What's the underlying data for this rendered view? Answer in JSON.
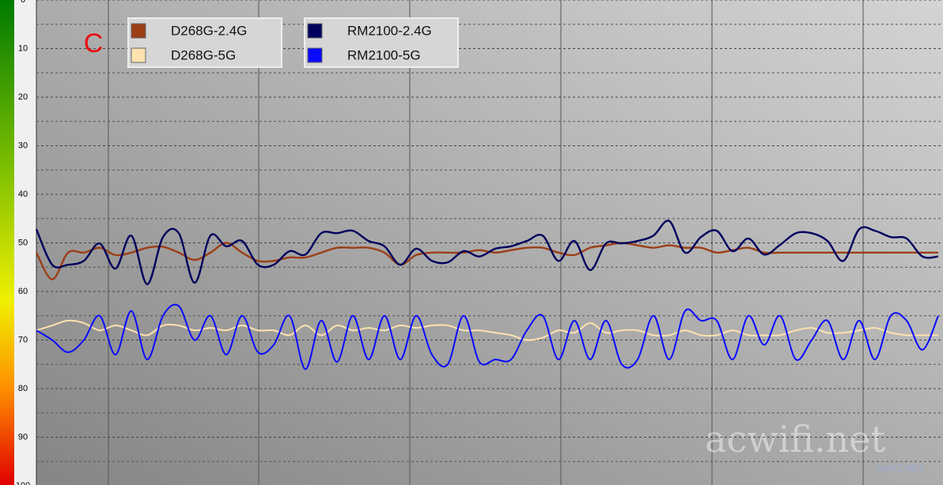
{
  "chart_data": {
    "type": "line",
    "annotation": "C",
    "watermark": "acwifi.net",
    "watermark_small": "SMYZ.NET",
    "categories": [
      null,
      null,
      null,
      null,
      null,
      null,
      null,
      null,
      null,
      null,
      null,
      null,
      null,
      null,
      null,
      null,
      null,
      null,
      null,
      null,
      null,
      null,
      null,
      null,
      null,
      null,
      null,
      null,
      null,
      null,
      null,
      null,
      null,
      null,
      null,
      null,
      null,
      null,
      null,
      null,
      null,
      null,
      null,
      null,
      null,
      null,
      null,
      null,
      null,
      null,
      null,
      null,
      null,
      null,
      null,
      null,
      null,
      null
    ],
    "ylim": [
      100,
      0
    ],
    "yticks": [
      0,
      10,
      20,
      30,
      40,
      50,
      60,
      70,
      80,
      90,
      100
    ],
    "grid": true,
    "legend": "top-left",
    "series": [
      {
        "name": "D268G-2.4G",
        "color": "#9c3f17",
        "values": [
          52,
          57.5,
          52,
          52,
          51,
          52.5,
          52,
          51,
          50.8,
          52,
          53.5,
          52,
          50,
          52,
          53.7,
          53.7,
          53,
          53,
          52,
          51,
          51,
          51,
          52,
          54.5,
          52.5,
          52,
          52,
          52,
          51.5,
          52,
          51.5,
          51,
          51,
          52,
          52.5,
          51,
          50.5,
          50,
          50.5,
          51,
          50.5,
          51,
          51,
          52,
          51.5,
          51,
          52,
          52,
          52,
          52,
          52,
          52,
          52,
          52,
          52,
          52,
          52,
          52
        ]
      },
      {
        "name": "D268G-5G",
        "color": "#ffe2b0",
        "values": [
          68,
          67,
          66,
          66.5,
          68,
          67,
          68,
          69,
          67,
          67,
          68,
          67.5,
          68,
          67,
          68,
          68,
          69,
          67,
          69,
          67,
          68,
          67.5,
          68,
          67,
          67.5,
          67,
          67,
          68,
          68,
          68.5,
          69,
          70,
          69.5,
          68,
          68.5,
          66.5,
          68.5,
          68,
          68,
          69,
          69,
          68,
          69,
          69,
          68,
          69,
          69,
          69,
          68,
          67.5,
          68.5,
          68.5,
          68,
          67.5,
          68.5,
          69,
          69,
          69
        ]
      },
      {
        "name": "RM2100-2.4G",
        "color": "#00005e",
        "values": [
          47.2,
          54.5,
          54.5,
          53.7,
          50.1,
          55.3,
          48.5,
          58.5,
          48.8,
          48.0,
          58.2,
          48.5,
          50.7,
          49.6,
          54.5,
          54.5,
          51.7,
          52.4,
          48.0,
          48.0,
          47.5,
          49.6,
          50.7,
          54.5,
          51.2,
          53.7,
          54.0,
          51.7,
          52.8,
          51.2,
          50.7,
          49.6,
          48.5,
          53.7,
          49.6,
          55.6,
          50.1,
          50.1,
          49.6,
          48.5,
          45.5,
          52.0,
          48.8,
          47.5,
          51.7,
          49.1,
          52.4,
          50.4,
          48.0,
          48.0,
          49.6,
          53.7,
          47.2,
          47.5,
          48.8,
          49.1,
          52.8,
          52.8
        ]
      },
      {
        "name": "RM2100-5G",
        "color": "#0a0aff",
        "values": [
          68,
          70,
          72.5,
          70,
          65,
          73,
          64,
          74,
          65,
          63,
          70,
          65,
          73,
          65,
          72.5,
          71,
          65,
          76,
          66,
          74.5,
          65,
          74,
          65,
          74,
          65,
          73,
          75,
          65,
          74.5,
          74,
          74,
          68,
          65,
          74,
          66,
          74,
          66,
          75,
          74,
          65,
          74,
          64,
          66,
          66,
          74,
          65,
          71,
          65,
          74,
          70,
          66,
          74,
          66,
          74,
          65,
          66,
          72,
          65
        ]
      }
    ]
  }
}
